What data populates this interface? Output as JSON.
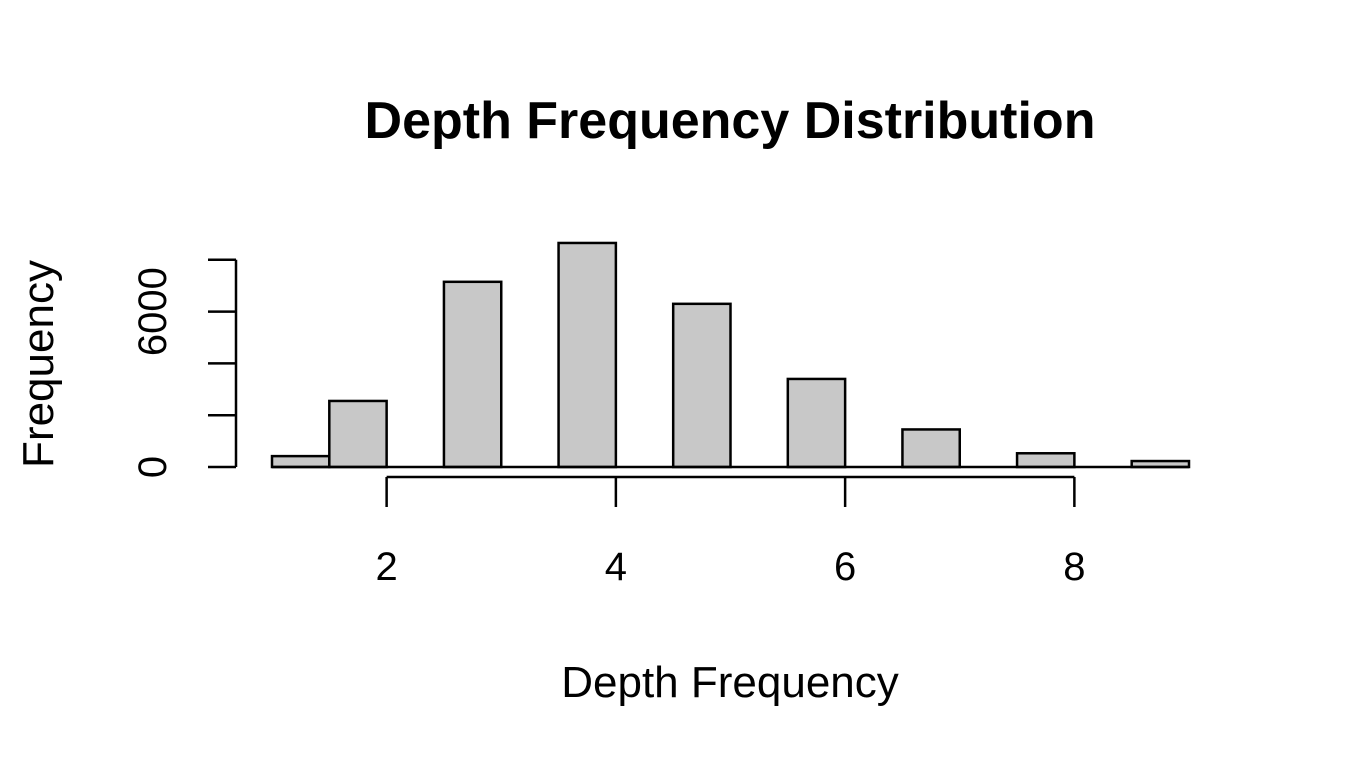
{
  "chart_data": {
    "type": "bar",
    "title": "Depth Frequency Distribution",
    "xlabel": "Depth Frequency",
    "ylabel": "Frequency",
    "bar_color": "#c8c8c8",
    "x_range": [
      1,
      9
    ],
    "xlim": [
      1,
      9
    ],
    "ylim": [
      0,
      10000
    ],
    "x_ticks": [
      2,
      4,
      6,
      8
    ],
    "y_ticks": [
      0,
      2000,
      4000,
      6000,
      8000
    ],
    "y_tick_labels": [
      "0",
      "",
      "",
      "6000",
      ""
    ],
    "bars": [
      {
        "x0": 1.0,
        "x1": 1.5,
        "value": 420
      },
      {
        "x0": 1.5,
        "x1": 2.0,
        "value": 2550
      },
      {
        "x0": 2.5,
        "x1": 3.0,
        "value": 7150
      },
      {
        "x0": 3.5,
        "x1": 4.0,
        "value": 8650
      },
      {
        "x0": 4.5,
        "x1": 5.0,
        "value": 6300
      },
      {
        "x0": 5.5,
        "x1": 6.0,
        "value": 3400
      },
      {
        "x0": 6.5,
        "x1": 7.0,
        "value": 1450
      },
      {
        "x0": 7.5,
        "x1": 8.0,
        "value": 530
      },
      {
        "x0": 8.5,
        "x1": 9.0,
        "value": 230
      }
    ],
    "grid": false,
    "legend": "none"
  }
}
